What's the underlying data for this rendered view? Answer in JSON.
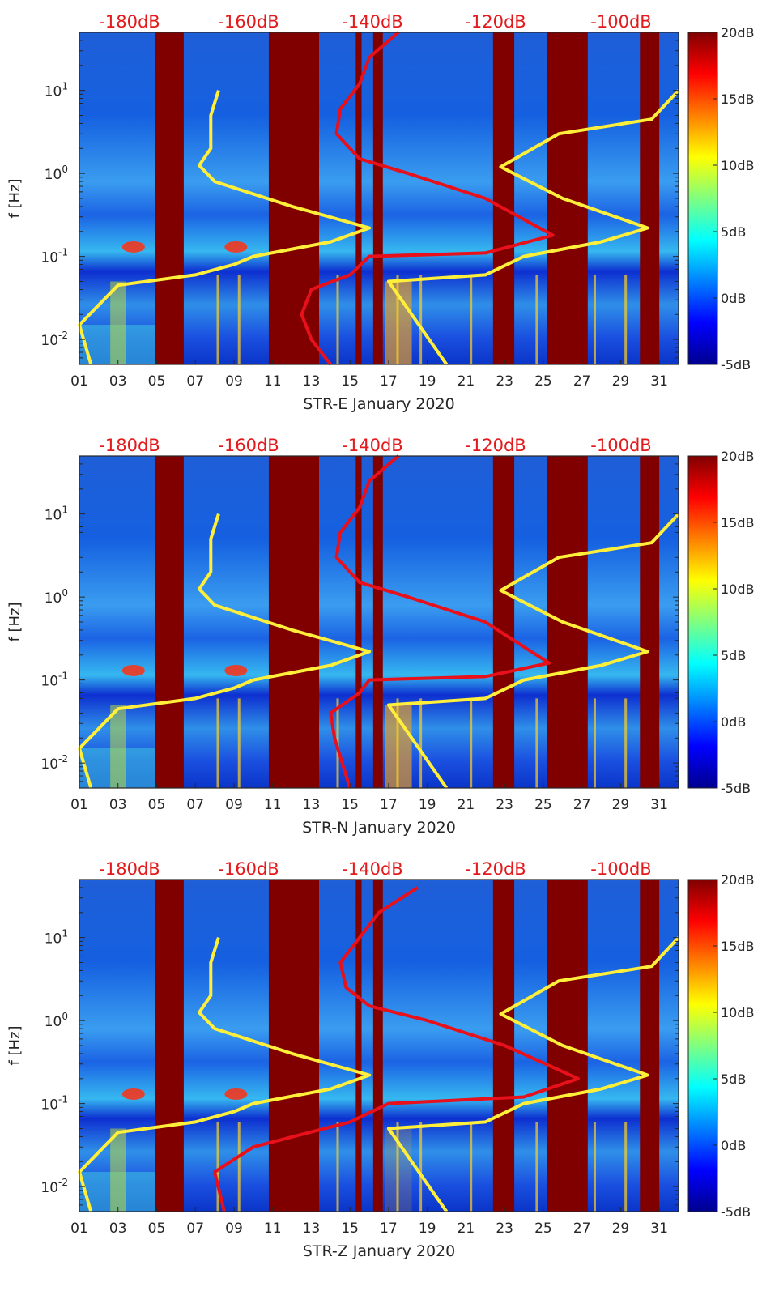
{
  "chart_data": [
    {
      "type": "heatmap",
      "station": "STR-E",
      "xlabel": "STR-E January 2020",
      "ylabel": "f [Hz]",
      "xlim": [
        1,
        32
      ],
      "ylim_hz": [
        0.005,
        50
      ],
      "x_ticks": [
        "01",
        "03",
        "05",
        "07",
        "09",
        "11",
        "13",
        "15",
        "17",
        "19",
        "21",
        "23",
        "25",
        "27",
        "29",
        "31"
      ],
      "y_ticks": [
        {
          "base": "10",
          "exp": "1"
        },
        {
          "base": "10",
          "exp": "0"
        },
        {
          "base": "10",
          "exp": "-1"
        },
        {
          "base": "10",
          "exp": "-2"
        }
      ],
      "db_labels": [
        "-180dB",
        "-160dB",
        "-140dB",
        "-120dB",
        "-100dB"
      ],
      "colorbar_ticks": [
        "20dB",
        "15dB",
        "10dB",
        "5dB",
        "0dB",
        "-5dB"
      ],
      "colorbar_range_db": [
        -5,
        20
      ],
      "gaps_days": [
        [
          4.9,
          6.4
        ],
        [
          10.8,
          13.4
        ],
        [
          15.3,
          15.6
        ],
        [
          16.2,
          16.7
        ],
        [
          22.4,
          23.5
        ],
        [
          25.2,
          27.3
        ],
        [
          30.0,
          31.0
        ]
      ],
      "yellow_curve": [
        [
          8.2,
          10
        ],
        [
          7.8,
          5
        ],
        [
          7.8,
          2
        ],
        [
          7.2,
          1.25
        ],
        [
          8,
          0.8
        ],
        [
          12,
          0.4
        ],
        [
          16,
          0.22
        ],
        [
          14,
          0.15
        ],
        [
          10,
          0.1
        ],
        [
          9,
          0.08
        ],
        [
          7,
          0.06
        ],
        [
          3,
          0.045
        ],
        [
          1,
          0.015
        ],
        [
          1.6,
          0.005
        ]
      ],
      "yellow_curve2": [
        [
          32,
          10
        ],
        [
          30.6,
          4.5
        ],
        [
          25.8,
          3
        ],
        [
          22.8,
          1.2
        ],
        [
          26,
          0.5
        ],
        [
          30.4,
          0.22
        ],
        [
          28,
          0.15
        ],
        [
          24,
          0.1
        ],
        [
          22,
          0.06
        ],
        [
          17,
          0.05
        ],
        [
          20,
          0.005
        ]
      ],
      "red_curve": [
        [
          17.5,
          50
        ],
        [
          16,
          25
        ],
        [
          15.5,
          12
        ],
        [
          14.5,
          6
        ],
        [
          14.3,
          3
        ],
        [
          15.5,
          1.5
        ],
        [
          18,
          1
        ],
        [
          22,
          0.5
        ],
        [
          25.5,
          0.18
        ],
        [
          22,
          0.11
        ],
        [
          16,
          0.1
        ],
        [
          15,
          0.06
        ],
        [
          13,
          0.04
        ],
        [
          12.5,
          0.02
        ],
        [
          13,
          0.01
        ],
        [
          14,
          0.005
        ]
      ]
    },
    {
      "type": "heatmap",
      "station": "STR-N",
      "xlabel": "STR-N January 2020",
      "ylabel": "f [Hz]",
      "xlim": [
        1,
        32
      ],
      "ylim_hz": [
        0.005,
        50
      ],
      "x_ticks": [
        "01",
        "03",
        "05",
        "07",
        "09",
        "11",
        "13",
        "15",
        "17",
        "19",
        "21",
        "23",
        "25",
        "27",
        "29",
        "31"
      ],
      "y_ticks": [
        {
          "base": "10",
          "exp": "1"
        },
        {
          "base": "10",
          "exp": "0"
        },
        {
          "base": "10",
          "exp": "-1"
        },
        {
          "base": "10",
          "exp": "-2"
        }
      ],
      "db_labels": [
        "-180dB",
        "-160dB",
        "-140dB",
        "-120dB",
        "-100dB"
      ],
      "colorbar_ticks": [
        "20dB",
        "15dB",
        "10dB",
        "5dB",
        "0dB",
        "-5dB"
      ],
      "colorbar_range_db": [
        -5,
        20
      ],
      "gaps_days": [
        [
          4.9,
          6.4
        ],
        [
          10.8,
          13.4
        ],
        [
          15.3,
          15.6
        ],
        [
          16.2,
          16.7
        ],
        [
          22.4,
          23.5
        ],
        [
          25.2,
          27.3
        ],
        [
          30.0,
          31.0
        ]
      ],
      "yellow_curve": [
        [
          8.2,
          10
        ],
        [
          7.8,
          5
        ],
        [
          7.8,
          2
        ],
        [
          7.2,
          1.25
        ],
        [
          8,
          0.8
        ],
        [
          12,
          0.4
        ],
        [
          16,
          0.22
        ],
        [
          14,
          0.15
        ],
        [
          10,
          0.1
        ],
        [
          9,
          0.08
        ],
        [
          7,
          0.06
        ],
        [
          3,
          0.045
        ],
        [
          1,
          0.015
        ],
        [
          1.6,
          0.005
        ]
      ],
      "yellow_curve2": [
        [
          32,
          10
        ],
        [
          30.6,
          4.5
        ],
        [
          25.8,
          3
        ],
        [
          22.8,
          1.2
        ],
        [
          26,
          0.5
        ],
        [
          30.4,
          0.22
        ],
        [
          28,
          0.15
        ],
        [
          24,
          0.1
        ],
        [
          22,
          0.06
        ],
        [
          17,
          0.05
        ],
        [
          20,
          0.005
        ]
      ],
      "red_curve": [
        [
          17.5,
          50
        ],
        [
          16,
          25
        ],
        [
          15.5,
          12
        ],
        [
          14.5,
          6
        ],
        [
          14.3,
          3
        ],
        [
          15.5,
          1.5
        ],
        [
          18,
          1
        ],
        [
          22,
          0.5
        ],
        [
          25.3,
          0.16
        ],
        [
          22,
          0.11
        ],
        [
          16,
          0.1
        ],
        [
          15.5,
          0.07
        ],
        [
          14,
          0.04
        ],
        [
          14.2,
          0.02
        ],
        [
          15,
          0.005
        ]
      ]
    },
    {
      "type": "heatmap",
      "station": "STR-Z",
      "xlabel": "STR-Z January 2020",
      "ylabel": "f [Hz]",
      "xlim": [
        1,
        32
      ],
      "ylim_hz": [
        0.005,
        50
      ],
      "x_ticks": [
        "01",
        "03",
        "05",
        "07",
        "09",
        "11",
        "13",
        "15",
        "17",
        "19",
        "21",
        "23",
        "25",
        "27",
        "29",
        "31"
      ],
      "y_ticks": [
        {
          "base": "10",
          "exp": "1"
        },
        {
          "base": "10",
          "exp": "0"
        },
        {
          "base": "10",
          "exp": "-1"
        },
        {
          "base": "10",
          "exp": "-2"
        }
      ],
      "db_labels": [
        "-180dB",
        "-160dB",
        "-140dB",
        "-120dB",
        "-100dB"
      ],
      "colorbar_ticks": [
        "20dB",
        "15dB",
        "10dB",
        "5dB",
        "0dB",
        "-5dB"
      ],
      "colorbar_range_db": [
        -5,
        20
      ],
      "gaps_days": [
        [
          4.9,
          6.4
        ],
        [
          10.8,
          13.4
        ],
        [
          15.3,
          15.6
        ],
        [
          16.2,
          16.7
        ],
        [
          22.4,
          23.5
        ],
        [
          25.2,
          27.3
        ],
        [
          30.0,
          31.0
        ]
      ],
      "yellow_curve": [
        [
          8.2,
          10
        ],
        [
          7.8,
          5
        ],
        [
          7.8,
          2
        ],
        [
          7.2,
          1.25
        ],
        [
          8,
          0.8
        ],
        [
          12,
          0.4
        ],
        [
          16,
          0.22
        ],
        [
          14,
          0.15
        ],
        [
          10,
          0.1
        ],
        [
          9,
          0.08
        ],
        [
          7,
          0.06
        ],
        [
          3,
          0.045
        ],
        [
          1,
          0.015
        ],
        [
          1.6,
          0.005
        ]
      ],
      "yellow_curve2": [
        [
          32,
          10
        ],
        [
          30.6,
          4.5
        ],
        [
          25.8,
          3
        ],
        [
          22.8,
          1.2
        ],
        [
          26,
          0.5
        ],
        [
          30.4,
          0.22
        ],
        [
          28,
          0.15
        ],
        [
          24,
          0.1
        ],
        [
          22,
          0.06
        ],
        [
          17,
          0.05
        ],
        [
          20,
          0.005
        ]
      ],
      "red_curve": [
        [
          18.5,
          40
        ],
        [
          16.5,
          20
        ],
        [
          15.5,
          10
        ],
        [
          14.5,
          5
        ],
        [
          14.8,
          2.5
        ],
        [
          16,
          1.5
        ],
        [
          19,
          1
        ],
        [
          23,
          0.5
        ],
        [
          26.8,
          0.2
        ],
        [
          24,
          0.12
        ],
        [
          17,
          0.1
        ],
        [
          15,
          0.06
        ],
        [
          10,
          0.03
        ],
        [
          8,
          0.015
        ],
        [
          8.5,
          0.005
        ]
      ]
    }
  ]
}
